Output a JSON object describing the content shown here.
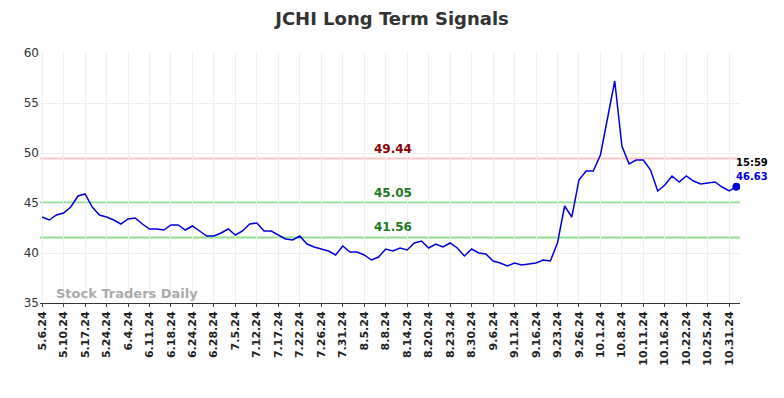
{
  "chart_data": {
    "type": "line",
    "title": "JCHI Long Term Signals",
    "watermark": "Stock Traders Daily",
    "categories": [
      "5.6.24",
      null,
      null,
      "5.10.24",
      null,
      null,
      "5.17.24",
      null,
      null,
      "5.24.24",
      null,
      null,
      "6.4.24",
      null,
      null,
      "6.11.24",
      null,
      null,
      "6.18.24",
      null,
      null,
      "6.24.24",
      null,
      null,
      "6.28.24",
      null,
      null,
      "7.5.24",
      null,
      null,
      "7.12.24",
      null,
      null,
      "7.17.24",
      null,
      null,
      "7.22.24",
      null,
      null,
      "7.26.24",
      null,
      null,
      "7.31.24",
      null,
      null,
      "8.5.24",
      null,
      null,
      "8.8.24",
      null,
      null,
      "8.14.24",
      null,
      null,
      "8.20.24",
      null,
      null,
      "8.23.24",
      null,
      null,
      "8.30.24",
      null,
      null,
      "9.6.24",
      null,
      null,
      "9.11.24",
      null,
      null,
      "9.16.24",
      null,
      null,
      "9.23.24",
      null,
      null,
      "9.26.24",
      null,
      null,
      "10.1.24",
      null,
      null,
      "10.8.24",
      null,
      null,
      "10.11.24",
      null,
      null,
      "10.16.24",
      null,
      null,
      "10.22.24",
      null,
      null,
      "10.25.24",
      null,
      null,
      "10.31.24",
      null
    ],
    "series": [
      {
        "name": "JCHI",
        "color": "#0000dd",
        "values": [
          43.6,
          43.3,
          43.8,
          44.0,
          44.6,
          45.7,
          45.9,
          44.6,
          43.8,
          43.6,
          43.3,
          42.9,
          43.4,
          43.5,
          42.9,
          42.4,
          42.4,
          42.3,
          42.8,
          42.8,
          42.3,
          42.7,
          42.2,
          41.7,
          41.7,
          42.0,
          42.4,
          41.8,
          42.2,
          42.9,
          43.0,
          42.2,
          42.2,
          41.8,
          41.4,
          41.3,
          41.7,
          40.9,
          40.6,
          40.4,
          40.2,
          39.8,
          40.7,
          40.1,
          40.1,
          39.8,
          39.3,
          39.6,
          40.4,
          40.2,
          40.5,
          40.3,
          41.0,
          41.2,
          40.5,
          40.9,
          40.6,
          41.0,
          40.5,
          39.7,
          40.4,
          40.0,
          39.9,
          39.2,
          39.0,
          38.7,
          39.0,
          38.8,
          38.9,
          39.0,
          39.3,
          39.2,
          41.0,
          44.7,
          43.6,
          47.3,
          48.2,
          48.2,
          49.8,
          53.5,
          57.2,
          50.7,
          48.9,
          49.3,
          49.3,
          48.3,
          46.2,
          46.8,
          47.7,
          47.1,
          47.7,
          47.2,
          46.9,
          47.0,
          47.1,
          46.6,
          46.2,
          46.63
        ]
      }
    ],
    "reference_lines": [
      {
        "value": 49.44,
        "label": "49.44",
        "color": "#f7c6c6"
      },
      {
        "value": 45.05,
        "label": "45.05",
        "color": "#90e090"
      },
      {
        "value": 41.56,
        "label": "41.56",
        "color": "#90e090"
      }
    ],
    "annotations": [
      {
        "text": "15:59"
      },
      {
        "text": "46.63"
      }
    ],
    "ylim": [
      35,
      60
    ],
    "yticks": [
      35,
      40,
      45,
      50,
      55,
      60
    ],
    "grid": true
  }
}
